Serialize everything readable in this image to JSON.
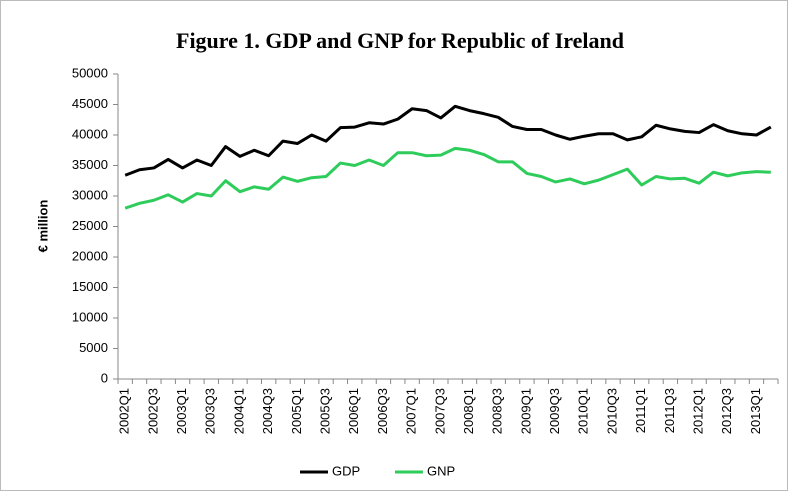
{
  "chart_data": {
    "type": "line",
    "title": "Figure 1. GDP and GNP for Republic of Ireland",
    "y_label": "€ million",
    "categories": [
      "2002Q1",
      null,
      "2002Q3",
      null,
      "2003Q1",
      null,
      "2003Q3",
      null,
      "2004Q1",
      null,
      "2004Q3",
      null,
      "2005Q1",
      null,
      "2005Q3",
      null,
      "2006Q1",
      null,
      "2006Q3",
      null,
      "2007Q1",
      null,
      "2007Q3",
      null,
      "2008Q1",
      null,
      "2008Q3",
      null,
      "2009Q1",
      null,
      "2009Q3",
      null,
      "2010Q1",
      null,
      "2010Q3",
      null,
      "2011Q1",
      null,
      "2011Q3",
      null,
      "2012Q1",
      null,
      "2012Q3",
      null,
      "2013Q1",
      null
    ],
    "series": [
      {
        "name": "GDP",
        "color": "#000000",
        "values": [
          33400,
          34300,
          34600,
          36000,
          34600,
          35900,
          35000,
          38100,
          36500,
          37500,
          36600,
          39000,
          38600,
          40000,
          39000,
          41200,
          41300,
          42000,
          41800,
          42600,
          44300,
          44000,
          42800,
          44700,
          44000,
          43500,
          42900,
          41400,
          40900,
          40900,
          40000,
          39300,
          39800,
          40200,
          40200,
          39200,
          39700,
          41600,
          41000,
          40600,
          40400,
          41700,
          40700,
          40200,
          40000,
          41300
        ]
      },
      {
        "name": "GNP",
        "color": "#2ecc5a",
        "values": [
          28000,
          28800,
          29300,
          30200,
          29000,
          30400,
          30000,
          32500,
          30700,
          31500,
          31100,
          33100,
          32400,
          33000,
          33200,
          35400,
          35000,
          35900,
          35000,
          37100,
          37100,
          36600,
          36700,
          37800,
          37500,
          36800,
          35600,
          35600,
          33700,
          33200,
          32300,
          32800,
          32000,
          32600,
          33500,
          34400,
          31800,
          33200,
          32800,
          32900,
          32100,
          33900,
          33300,
          33800,
          34000,
          33900
        ]
      }
    ],
    "ylim": [
      0,
      50000
    ],
    "yticks": [
      0,
      5000,
      10000,
      15000,
      20000,
      25000,
      30000,
      35000,
      40000,
      45000,
      50000
    ],
    "grid": false,
    "legend": "bottom"
  }
}
